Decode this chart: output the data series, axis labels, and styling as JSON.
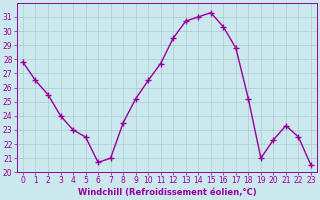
{
  "x": [
    0,
    1,
    2,
    3,
    4,
    5,
    6,
    7,
    8,
    9,
    10,
    11,
    12,
    13,
    14,
    15,
    16,
    17,
    18,
    19,
    20,
    21,
    22,
    23
  ],
  "y": [
    27.8,
    26.5,
    25.5,
    24.0,
    23.0,
    22.5,
    20.7,
    21.0,
    23.5,
    25.2,
    26.5,
    27.7,
    29.5,
    30.7,
    31.0,
    31.3,
    30.3,
    28.8,
    25.2,
    21.0,
    22.3,
    23.3,
    22.5,
    20.5
  ],
  "line_color": "#990099",
  "marker": "+",
  "markersize": 4,
  "markeredgewidth": 1.0,
  "linewidth": 1.0,
  "bg_color": "#cce8ef",
  "grid_color": "#aacccc",
  "tick_color": "#990099",
  "label_color": "#990099",
  "xlabel": "Windchill (Refroidissement éolien,°C)",
  "ylim": [
    20,
    32
  ],
  "xlim": [
    -0.5,
    23.5
  ],
  "yticks": [
    20,
    21,
    22,
    23,
    24,
    25,
    26,
    27,
    28,
    29,
    30,
    31
  ],
  "xticks": [
    0,
    1,
    2,
    3,
    4,
    5,
    6,
    7,
    8,
    9,
    10,
    11,
    12,
    13,
    14,
    15,
    16,
    17,
    18,
    19,
    20,
    21,
    22,
    23
  ],
  "xlabel_fontsize": 6.0,
  "tick_fontsize": 5.5
}
